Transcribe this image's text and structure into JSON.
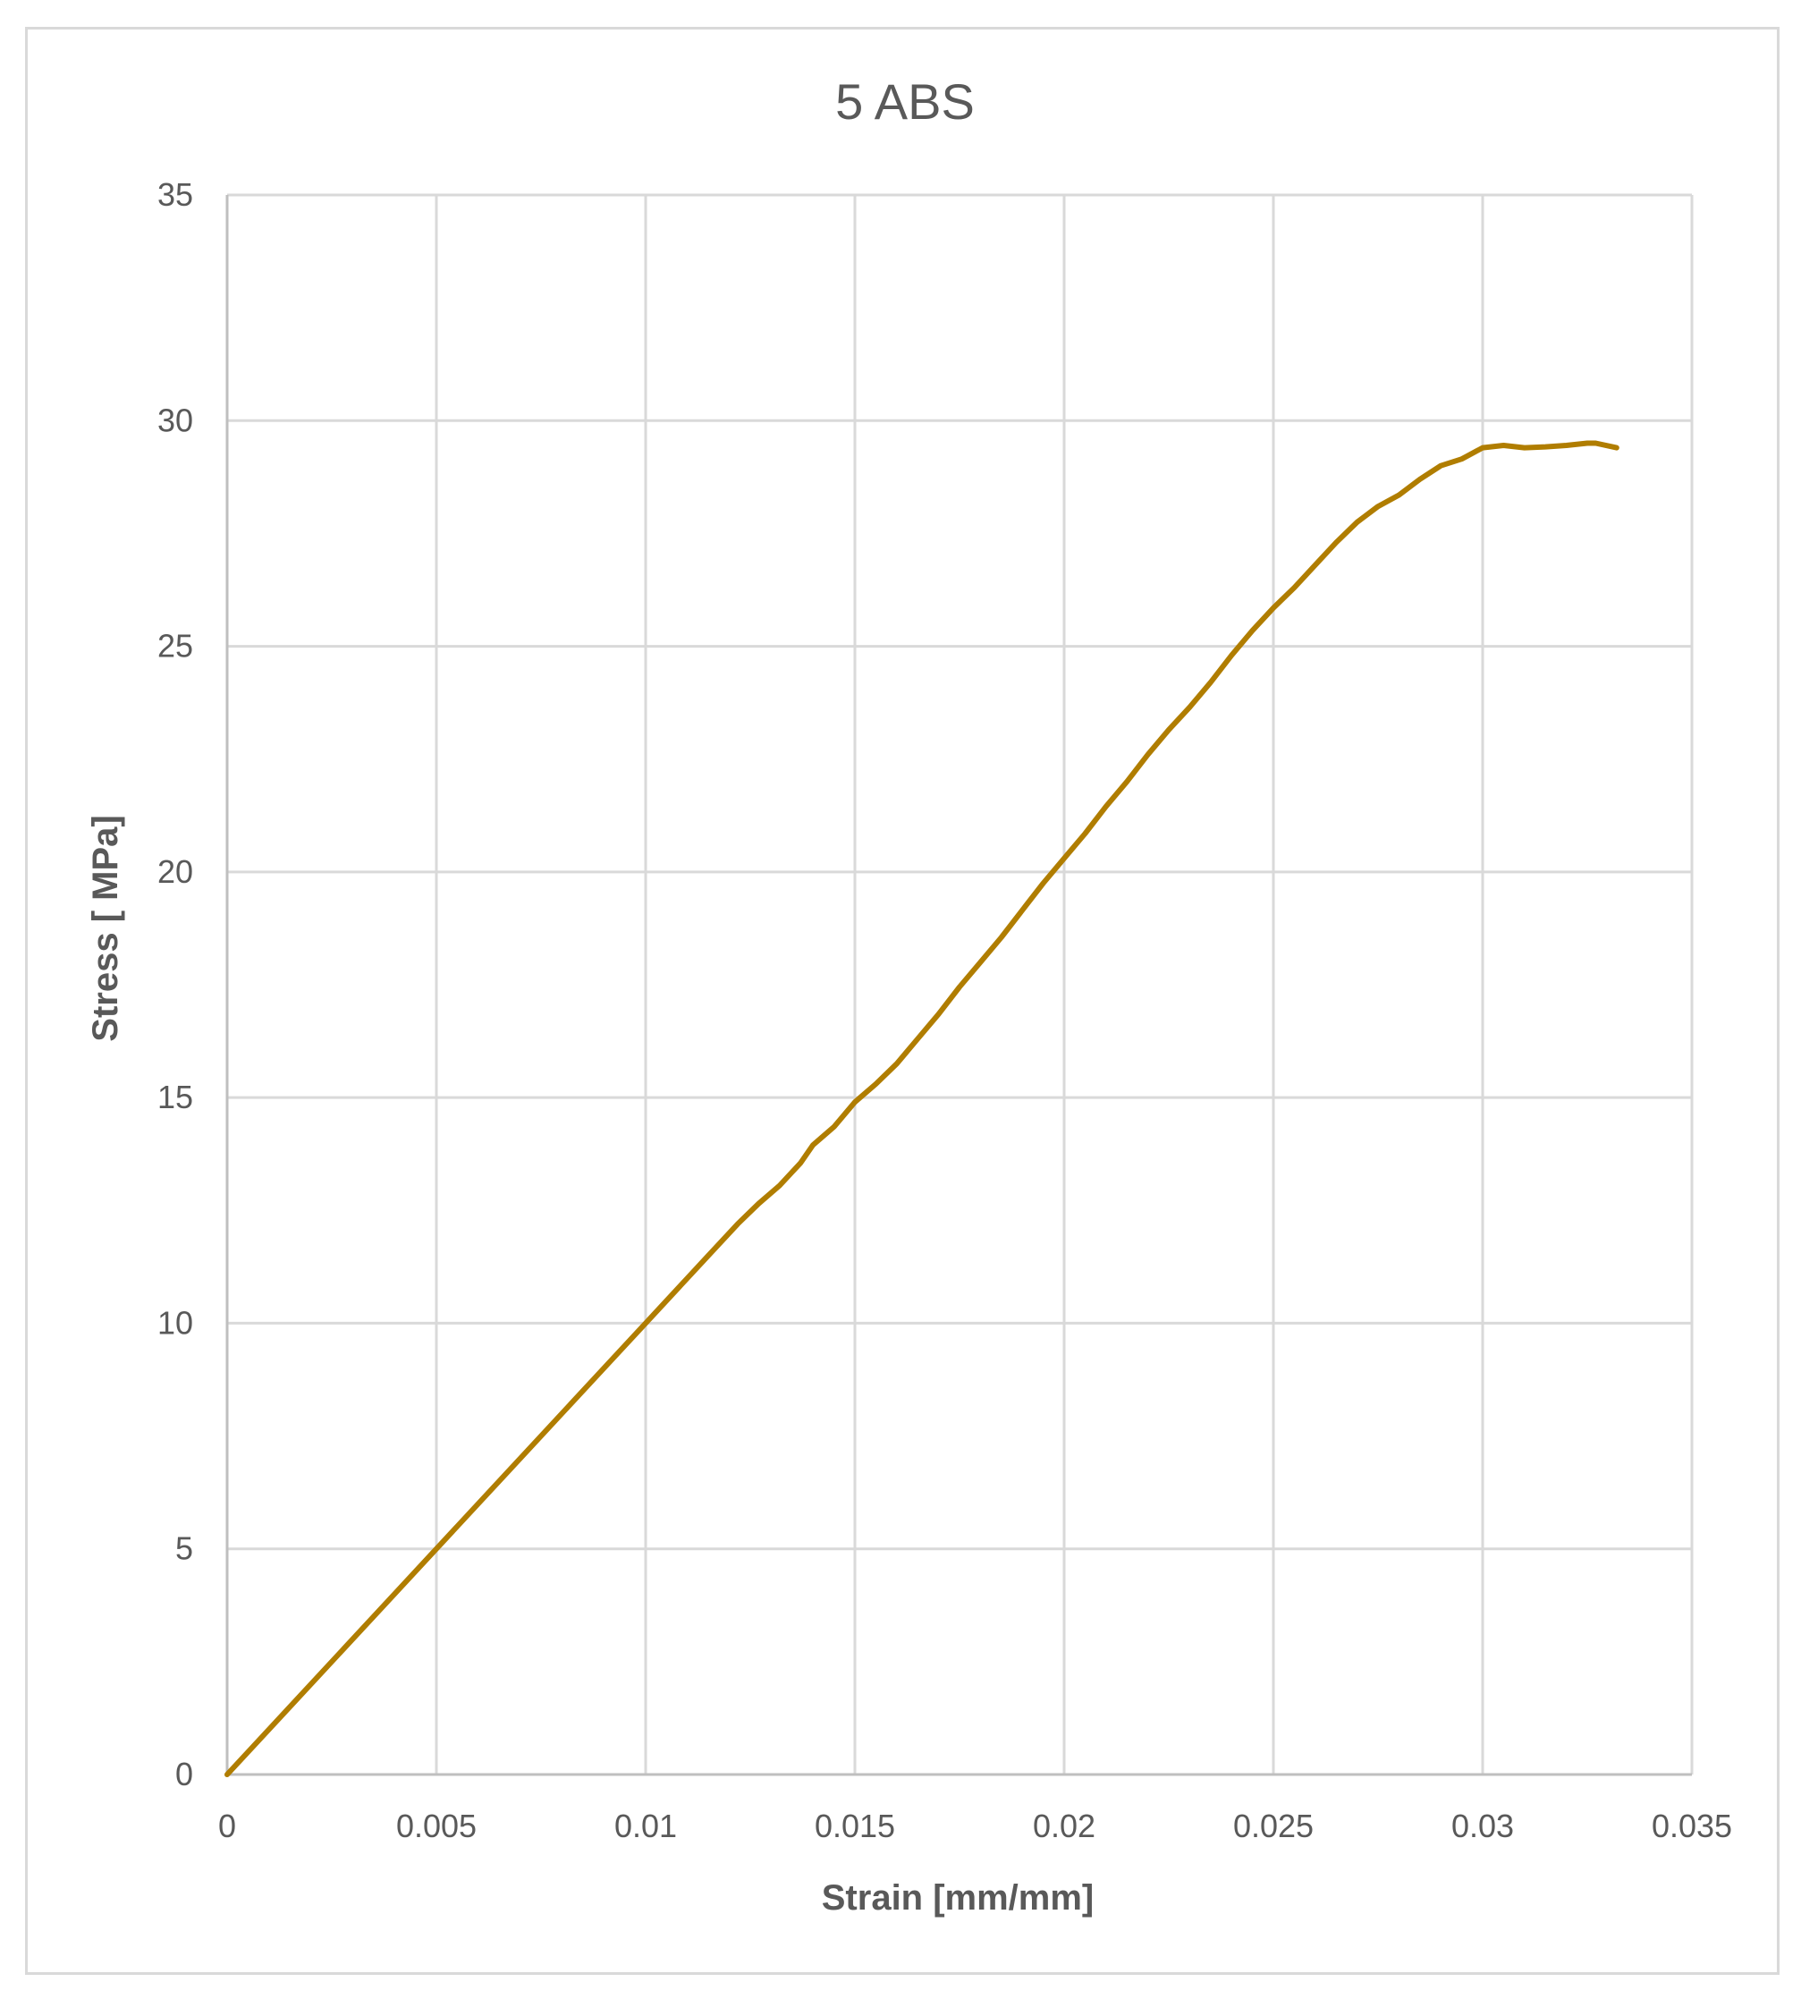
{
  "chart_data": {
    "type": "line",
    "title": "5 ABS",
    "xlabel": "Strain [mm/mm]",
    "ylabel": "Stress [ MPa]",
    "xlim": [
      0,
      0.035
    ],
    "ylim": [
      0,
      35
    ],
    "xticks": [
      "0",
      "0.005",
      "0.01",
      "0.015",
      "0.02",
      "0.025",
      "0.03",
      "0.035"
    ],
    "yticks": [
      "0",
      "5",
      "10",
      "15",
      "20",
      "25",
      "30",
      "35"
    ],
    "grid": true,
    "legend": "none",
    "series": [
      {
        "color": "#b07d00",
        "x": [
          0,
          0.005,
          0.01,
          0.0115,
          0.0122,
          0.0127,
          0.0132,
          0.0137,
          0.014,
          0.0145,
          0.015,
          0.0155,
          0.016,
          0.0165,
          0.017,
          0.0175,
          0.018,
          0.0185,
          0.019,
          0.0195,
          0.02,
          0.0205,
          0.021,
          0.0215,
          0.022,
          0.0225,
          0.023,
          0.0235,
          0.024,
          0.0245,
          0.025,
          0.0255,
          0.026,
          0.0265,
          0.027,
          0.0275,
          0.028,
          0.0285,
          0.029,
          0.0295,
          0.03,
          0.0305,
          0.031,
          0.0315,
          0.032,
          0.0325,
          0.0327,
          0.0332
        ],
        "y": [
          0,
          5,
          10,
          11.5,
          12.2,
          12.65,
          13.05,
          13.55,
          13.95,
          14.35,
          14.9,
          15.3,
          15.75,
          16.3,
          16.85,
          17.45,
          18.0,
          18.55,
          19.15,
          19.75,
          20.3,
          20.85,
          21.45,
          22.0,
          22.6,
          23.15,
          23.65,
          24.2,
          24.8,
          25.35,
          25.85,
          26.3,
          26.8,
          27.3,
          27.75,
          28.1,
          28.35,
          28.7,
          29.0,
          29.15,
          29.4,
          29.45,
          29.4,
          29.42,
          29.45,
          29.5,
          29.5,
          29.4
        ]
      }
    ]
  }
}
